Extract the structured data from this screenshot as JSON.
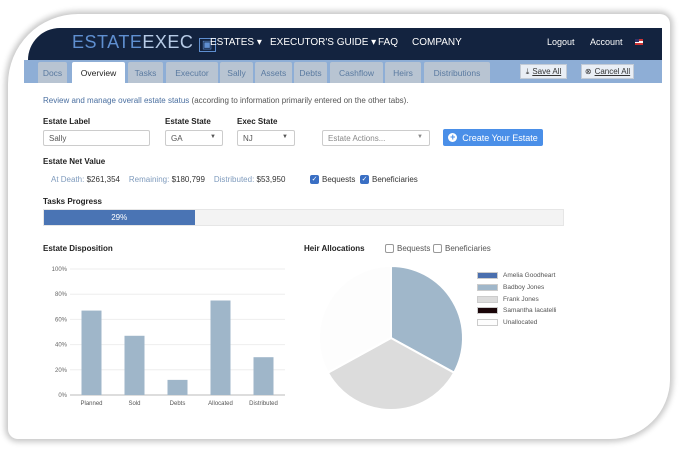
{
  "brand": {
    "logo_text": "ESTATEEXEC"
  },
  "nav": {
    "items": [
      "ESTATES ▾",
      "EXECUTOR'S GUIDE ▾",
      "FAQ",
      "COMPANY"
    ],
    "logout": "Logout",
    "account": "Account"
  },
  "tabs": [
    "Docs",
    "Overview",
    "Tasks",
    "Executor",
    "Sally",
    "Assets",
    "Debts",
    "Cashflow",
    "Heirs",
    "Distributions"
  ],
  "active_tab": "Overview",
  "toolbar": {
    "save_label": "Save All",
    "cancel_label": "Cancel All"
  },
  "description": {
    "main": "Review and manage overall estate status",
    "note": " (according to information primarily entered on the other tabs)."
  },
  "form": {
    "estate_label": "Estate Label",
    "estate_label_value": "Sally",
    "estate_state": "Estate State",
    "estate_state_value": "GA",
    "exec_state": "Exec State",
    "exec_state_value": "NJ",
    "actions_placeholder": "Estate Actions...",
    "create_button": "Create Your Estate"
  },
  "net_value": {
    "title": "Estate Net Value",
    "at_death_label": "At Death:",
    "at_death": "$261,354",
    "remaining_label": "Remaining:",
    "remaining": "$180,799",
    "distributed_label": "Distributed:",
    "distributed": "$53,950",
    "bequests": "Bequests",
    "beneficiaries": "Beneficiaries",
    "bequests_checked": true,
    "beneficiaries_checked": true
  },
  "progress": {
    "title": "Tasks Progress",
    "value": 29,
    "label": "29%",
    "color": "#4a74b4"
  },
  "heir": {
    "title": "Heir Allocations",
    "bequests": "Bequests",
    "beneficiaries": "Beneficiaries",
    "bequests_checked": false,
    "beneficiaries_checked": false
  },
  "chart_data": [
    {
      "type": "bar",
      "title": "Estate Disposition",
      "categories": [
        "Planned",
        "Sold",
        "Debts",
        "Allocated",
        "Distributed"
      ],
      "values": [
        67,
        47,
        12,
        75,
        30
      ],
      "ylim": [
        0,
        100
      ],
      "yticks": [
        "0%",
        "20%",
        "40%",
        "60%",
        "80%",
        "100%"
      ],
      "grid": true,
      "color": "#9fb6c9"
    },
    {
      "type": "pie",
      "legend_position": "right",
      "slices": [
        {
          "name": "Amelia Goodheart",
          "value": 0,
          "color": "#4a6fae"
        },
        {
          "name": "Badboy Jones",
          "value": 33,
          "color": "#a0b7ca"
        },
        {
          "name": "Frank Jones",
          "value": 34,
          "color": "#dcdcdc"
        },
        {
          "name": "Samantha Iacatelli",
          "value": 0,
          "color": "#1a0508"
        },
        {
          "name": "Unallocated",
          "value": 33,
          "color": "#fdfdfd"
        }
      ]
    }
  ]
}
